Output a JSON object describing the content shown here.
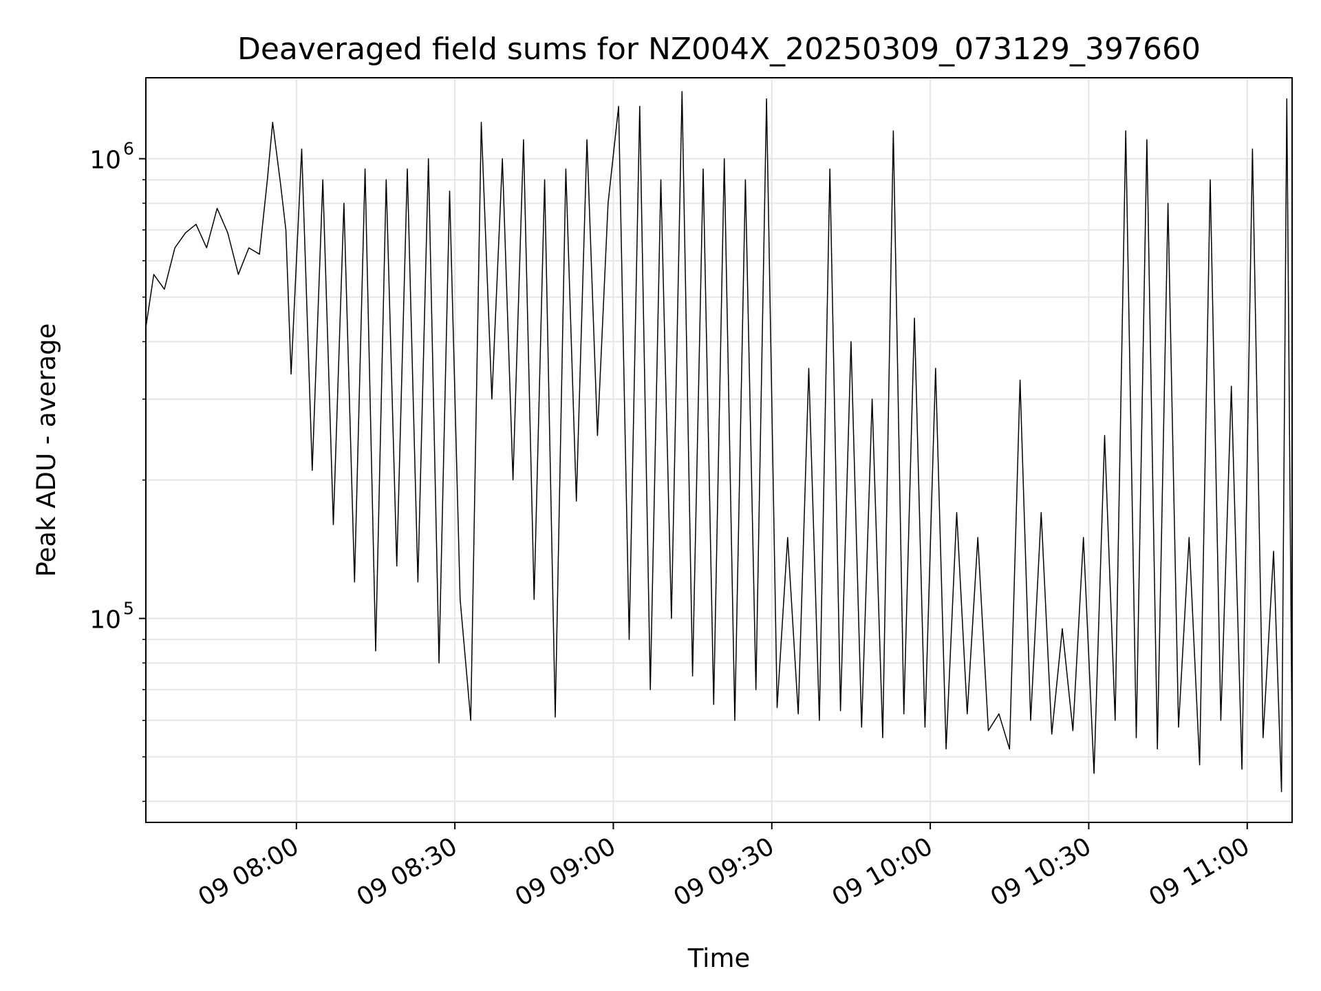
{
  "chart_data": {
    "type": "line",
    "title": "Deaveraged field sums for NZ004X_20250309_073129_397660",
    "xlabel": "Time",
    "ylabel": "Peak ADU - average",
    "x_axis": {
      "kind": "time",
      "range": [
        "2025-03-09T07:31:30",
        "2025-03-09T11:08:30"
      ],
      "ticks": [
        {
          "value": "2025-03-09T08:00",
          "label": "09 08:00"
        },
        {
          "value": "2025-03-09T08:30",
          "label": "09 08:30"
        },
        {
          "value": "2025-03-09T09:00",
          "label": "09 09:00"
        },
        {
          "value": "2025-03-09T09:30",
          "label": "09 09:30"
        },
        {
          "value": "2025-03-09T10:00",
          "label": "09 10:00"
        },
        {
          "value": "2025-03-09T10:30",
          "label": "09 10:30"
        },
        {
          "value": "2025-03-09T11:00",
          "label": "09 11:00"
        }
      ]
    },
    "y_axis": {
      "scale": "log",
      "range": [
        36000,
        1500000
      ],
      "major_ticks": [
        {
          "value": 100000,
          "base": "10",
          "exp": "5"
        },
        {
          "value": 1000000,
          "base": "10",
          "exp": "6"
        }
      ]
    },
    "grid": true,
    "series": [
      {
        "color": "#000000",
        "points": [
          [
            "2025-03-09T07:31:30",
            430000
          ],
          [
            "2025-03-09T07:33:00",
            560000
          ],
          [
            "2025-03-09T07:35:00",
            520000
          ],
          [
            "2025-03-09T07:37:00",
            640000
          ],
          [
            "2025-03-09T07:39:00",
            690000
          ],
          [
            "2025-03-09T07:41:00",
            720000
          ],
          [
            "2025-03-09T07:43:00",
            640000
          ],
          [
            "2025-03-09T07:45:00",
            780000
          ],
          [
            "2025-03-09T07:47:00",
            690000
          ],
          [
            "2025-03-09T07:49:00",
            560000
          ],
          [
            "2025-03-09T07:51:00",
            640000
          ],
          [
            "2025-03-09T07:53:00",
            620000
          ],
          [
            "2025-03-09T07:54:30",
            900000
          ],
          [
            "2025-03-09T07:55:30",
            1200000
          ],
          [
            "2025-03-09T07:57:00",
            880000
          ],
          [
            "2025-03-09T07:58:00",
            700000
          ],
          [
            "2025-03-09T07:59:00",
            340000
          ],
          [
            "2025-03-09T08:01:00",
            1050000
          ],
          [
            "2025-03-09T08:03:00",
            210000
          ],
          [
            "2025-03-09T08:05:00",
            900000
          ],
          [
            "2025-03-09T08:07:00",
            160000
          ],
          [
            "2025-03-09T08:09:00",
            800000
          ],
          [
            "2025-03-09T08:11:00",
            120000
          ],
          [
            "2025-03-09T08:13:00",
            950000
          ],
          [
            "2025-03-09T08:15:00",
            85000
          ],
          [
            "2025-03-09T08:17:00",
            900000
          ],
          [
            "2025-03-09T08:19:00",
            130000
          ],
          [
            "2025-03-09T08:21:00",
            950000
          ],
          [
            "2025-03-09T08:23:00",
            120000
          ],
          [
            "2025-03-09T08:25:00",
            1000000
          ],
          [
            "2025-03-09T08:27:00",
            80000
          ],
          [
            "2025-03-09T08:29:00",
            850000
          ],
          [
            "2025-03-09T08:31:00",
            110000
          ],
          [
            "2025-03-09T08:33:00",
            60000
          ],
          [
            "2025-03-09T08:35:00",
            1200000
          ],
          [
            "2025-03-09T08:37:00",
            300000
          ],
          [
            "2025-03-09T08:39:00",
            1000000
          ],
          [
            "2025-03-09T08:41:00",
            200000
          ],
          [
            "2025-03-09T08:43:00",
            1100000
          ],
          [
            "2025-03-09T08:45:00",
            110000
          ],
          [
            "2025-03-09T08:47:00",
            900000
          ],
          [
            "2025-03-09T08:49:00",
            61000
          ],
          [
            "2025-03-09T08:51:00",
            950000
          ],
          [
            "2025-03-09T08:53:00",
            180000
          ],
          [
            "2025-03-09T08:55:00",
            1100000
          ],
          [
            "2025-03-09T08:57:00",
            250000
          ],
          [
            "2025-03-09T08:59:00",
            800000
          ],
          [
            "2025-03-09T09:01:00",
            1300000
          ],
          [
            "2025-03-09T09:03:00",
            90000
          ],
          [
            "2025-03-09T09:05:00",
            1300000
          ],
          [
            "2025-03-09T09:07:00",
            70000
          ],
          [
            "2025-03-09T09:09:00",
            900000
          ],
          [
            "2025-03-09T09:11:00",
            100000
          ],
          [
            "2025-03-09T09:13:00",
            1400000
          ],
          [
            "2025-03-09T09:15:00",
            75000
          ],
          [
            "2025-03-09T09:17:00",
            950000
          ],
          [
            "2025-03-09T09:19:00",
            65000
          ],
          [
            "2025-03-09T09:21:00",
            1000000
          ],
          [
            "2025-03-09T09:23:00",
            60000
          ],
          [
            "2025-03-09T09:25:00",
            900000
          ],
          [
            "2025-03-09T09:27:00",
            70000
          ],
          [
            "2025-03-09T09:29:00",
            1350000
          ],
          [
            "2025-03-09T09:31:00",
            64000
          ],
          [
            "2025-03-09T09:33:00",
            150000
          ],
          [
            "2025-03-09T09:35:00",
            62000
          ],
          [
            "2025-03-09T09:37:00",
            350000
          ],
          [
            "2025-03-09T09:39:00",
            60000
          ],
          [
            "2025-03-09T09:41:00",
            950000
          ],
          [
            "2025-03-09T09:43:00",
            63000
          ],
          [
            "2025-03-09T09:45:00",
            400000
          ],
          [
            "2025-03-09T09:47:00",
            58000
          ],
          [
            "2025-03-09T09:49:00",
            300000
          ],
          [
            "2025-03-09T09:51:00",
            55000
          ],
          [
            "2025-03-09T09:53:00",
            1150000
          ],
          [
            "2025-03-09T09:55:00",
            62000
          ],
          [
            "2025-03-09T09:57:00",
            450000
          ],
          [
            "2025-03-09T09:59:00",
            58000
          ],
          [
            "2025-03-09T10:01:00",
            350000
          ],
          [
            "2025-03-09T10:03:00",
            52000
          ],
          [
            "2025-03-09T10:05:00",
            170000
          ],
          [
            "2025-03-09T10:07:00",
            62000
          ],
          [
            "2025-03-09T10:09:00",
            150000
          ],
          [
            "2025-03-09T10:11:00",
            57000
          ],
          [
            "2025-03-09T10:13:00",
            62000
          ],
          [
            "2025-03-09T10:15:00",
            52000
          ],
          [
            "2025-03-09T10:17:00",
            330000
          ],
          [
            "2025-03-09T10:19:00",
            60000
          ],
          [
            "2025-03-09T10:21:00",
            170000
          ],
          [
            "2025-03-09T10:23:00",
            56000
          ],
          [
            "2025-03-09T10:25:00",
            95000
          ],
          [
            "2025-03-09T10:27:00",
            57000
          ],
          [
            "2025-03-09T10:29:00",
            150000
          ],
          [
            "2025-03-09T10:31:00",
            46000
          ],
          [
            "2025-03-09T10:33:00",
            250000
          ],
          [
            "2025-03-09T10:35:00",
            60000
          ],
          [
            "2025-03-09T10:37:00",
            1150000
          ],
          [
            "2025-03-09T10:39:00",
            55000
          ],
          [
            "2025-03-09T10:41:00",
            1100000
          ],
          [
            "2025-03-09T10:43:00",
            52000
          ],
          [
            "2025-03-09T10:45:00",
            800000
          ],
          [
            "2025-03-09T10:47:00",
            58000
          ],
          [
            "2025-03-09T10:49:00",
            150000
          ],
          [
            "2025-03-09T10:51:00",
            48000
          ],
          [
            "2025-03-09T10:53:00",
            900000
          ],
          [
            "2025-03-09T10:55:00",
            60000
          ],
          [
            "2025-03-09T10:57:00",
            320000
          ],
          [
            "2025-03-09T10:59:00",
            47000
          ],
          [
            "2025-03-09T11:01:00",
            1050000
          ],
          [
            "2025-03-09T11:03:00",
            55000
          ],
          [
            "2025-03-09T11:05:00",
            140000
          ],
          [
            "2025-03-09T11:06:30",
            42000
          ],
          [
            "2025-03-09T11:07:30",
            1350000
          ],
          [
            "2025-03-09T11:08:30",
            52000
          ]
        ]
      }
    ]
  }
}
